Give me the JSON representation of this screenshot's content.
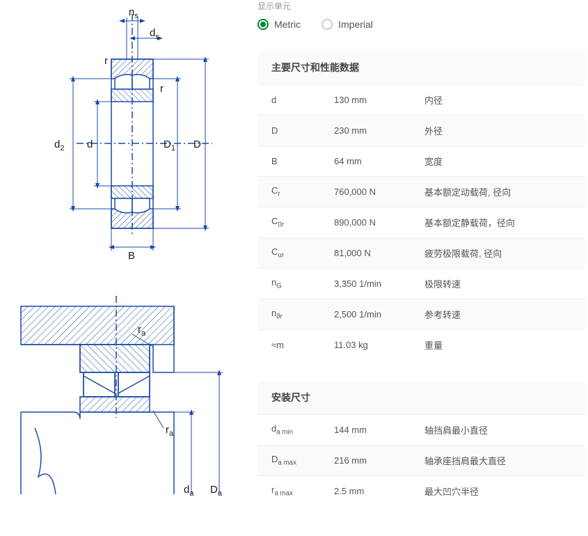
{
  "unit_selector": {
    "label": "显示单元",
    "options": {
      "metric": "Metric",
      "imperial": "Imperial"
    },
    "selected": "metric"
  },
  "sections": {
    "main": {
      "title": "主要尺寸和性能数据",
      "rows": [
        {
          "symbol_html": "d",
          "value": "130 mm",
          "desc": "内径"
        },
        {
          "symbol_html": "D",
          "value": "230 mm",
          "desc": "外径"
        },
        {
          "symbol_html": "B",
          "value": "64 mm",
          "desc": "宽度"
        },
        {
          "symbol_html": "C<sub>r</sub>",
          "value": "760,000 N",
          "desc": "基本额定动载荷, 径向"
        },
        {
          "symbol_html": "C<sub>0r</sub>",
          "value": "890,000 N",
          "desc": "基本额定静载荷，径向"
        },
        {
          "symbol_html": "C<sub>ur</sub>",
          "value": "81,000 N",
          "desc": "疲劳极限载荷, 径向"
        },
        {
          "symbol_html": "n<sub>G</sub>",
          "value": "3,350 1/min",
          "desc": "极限转速"
        },
        {
          "symbol_html": "n<sub>ϑr</sub>",
          "value": "2,500 1/min",
          "desc": "参考转速"
        },
        {
          "symbol_html": "≈m",
          "value": "11.03 kg",
          "desc": "重量"
        }
      ]
    },
    "mounting": {
      "title": "安装尺寸",
      "rows": [
        {
          "symbol_html": "d<sub>a min</sub>",
          "value": "144 mm",
          "desc": "轴挡肩最小直径"
        },
        {
          "symbol_html": "D<sub>a max</sub>",
          "value": "216 mm",
          "desc": "轴承座挡肩最大直径"
        },
        {
          "symbol_html": "r<sub>a max</sub>",
          "value": "2.5 mm",
          "desc": "最大凹穴半径"
        }
      ]
    }
  },
  "diagrams": {
    "top": {
      "labels": {
        "ns": "n",
        "ns_sub": "s",
        "ds": "d",
        "ds_sub": "s",
        "r1": "r",
        "r2": "r",
        "d2": "d",
        "d2_sub": "2",
        "d": "d",
        "D1": "D",
        "D1_sub": "1",
        "D": "D",
        "B": "B"
      },
      "stroke": "#1a4aa8",
      "hatch": "#1a4aa8",
      "text": "#1a1a1a"
    },
    "bottom": {
      "labels": {
        "ra1": "r",
        "ra1_sub": "a",
        "ra2": "r",
        "ra2_sub": "a",
        "da": "d",
        "da_sub": "a",
        "Da": "D",
        "Da_sub": "a"
      },
      "stroke": "#1a4aa8",
      "hatch": "#1a4aa8",
      "text": "#1a1a1a"
    }
  },
  "colors": {
    "accent": "#00893d",
    "row_alt": "#fafafa",
    "border": "#eeeeee",
    "text": "#555555",
    "muted": "#999999"
  }
}
